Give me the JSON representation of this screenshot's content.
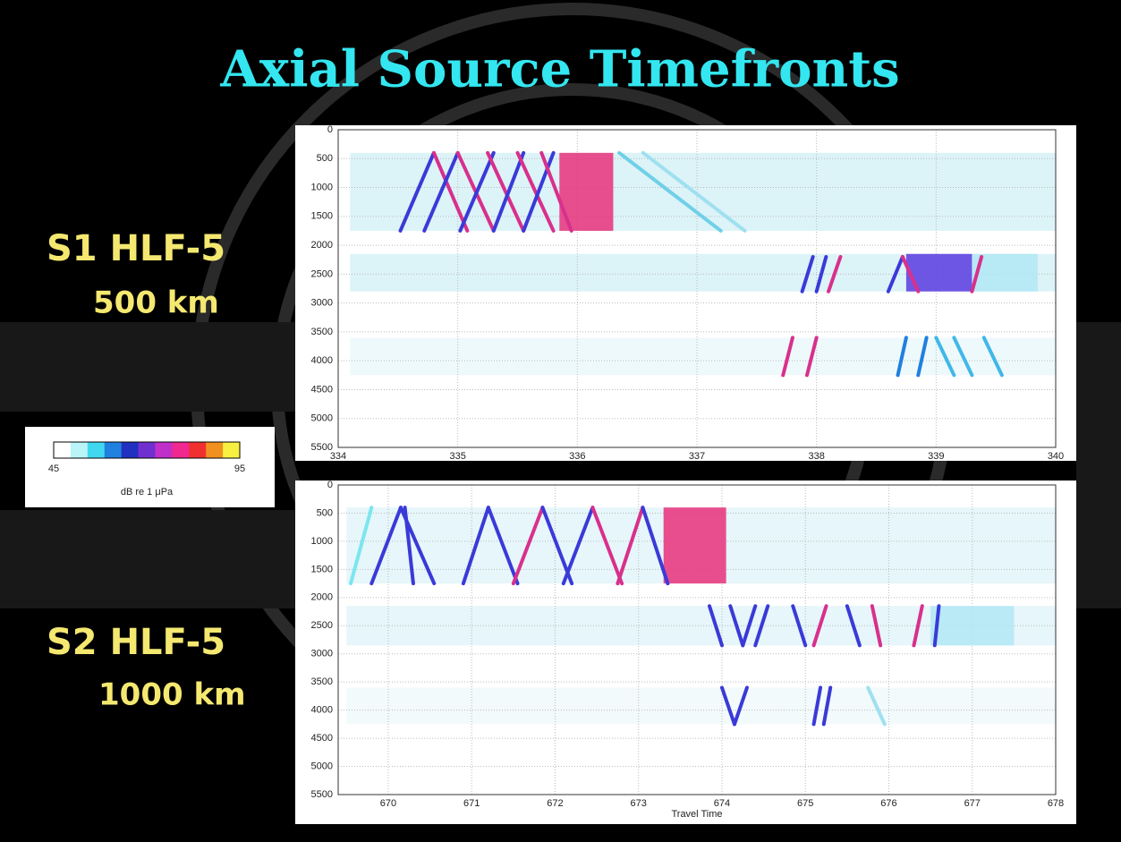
{
  "slide": {
    "title": "Axial Source Timefronts",
    "labels": [
      "S1 HLF-5",
      "500 km",
      "S2 HLF-5",
      "1000 km"
    ]
  },
  "colorbar": {
    "colors": [
      "#ffffff",
      "#b8f4f8",
      "#40d8f0",
      "#2080e0",
      "#2030c0",
      "#7030d0",
      "#c030c8",
      "#f02890",
      "#f03030",
      "#f09020",
      "#f8f040"
    ],
    "clim": [
      45,
      95
    ],
    "ticks": [
      45,
      95
    ],
    "label": "dB re 1 μPa"
  },
  "chart_data": [
    {
      "type": "timefront",
      "xlim": [
        334,
        340
      ],
      "xticks": [
        334,
        335,
        336,
        337,
        338,
        339,
        340
      ],
      "ylim": [
        5500,
        0
      ],
      "yticks": [
        0,
        500,
        1000,
        1500,
        2000,
        2500,
        3000,
        3500,
        4000,
        4500,
        5000,
        5500
      ],
      "grid": true,
      "bands": [
        {
          "color": "#dcf3f8",
          "x": [
            334.1,
            340
          ],
          "values": [
            400,
            1750
          ]
        },
        {
          "color": "#dcf3f8",
          "x": [
            334.1,
            340
          ],
          "values": [
            2150,
            2800
          ]
        },
        {
          "color": "#eef9fb",
          "x": [
            334.1,
            340
          ],
          "values": [
            3600,
            4250
          ]
        }
      ],
      "blocks": [
        {
          "color": "#e8307a",
          "x": [
            335.85,
            336.3
          ],
          "values": [
            400,
            1750
          ]
        },
        {
          "color": "#5a3ae0",
          "x": [
            338.75,
            339.3
          ],
          "values": [
            2150,
            2800
          ]
        },
        {
          "color": "#b0e8f4",
          "x": [
            339.3,
            339.85
          ],
          "values": [
            2150,
            2800
          ]
        }
      ],
      "series": [
        {
          "color": "#3a3ad8",
          "x": [
            334.52,
            334.8
          ],
          "values": [
            1750,
            400
          ]
        },
        {
          "color": "#d8308c",
          "x": [
            334.8,
            335.08
          ],
          "values": [
            400,
            1750
          ]
        },
        {
          "color": "#3a3ad8",
          "x": [
            334.72,
            335.0
          ],
          "values": [
            1750,
            400
          ]
        },
        {
          "color": "#d8308c",
          "x": [
            335.0,
            335.3
          ],
          "values": [
            400,
            1750
          ]
        },
        {
          "color": "#3a3ad8",
          "x": [
            335.02,
            335.3
          ],
          "values": [
            1750,
            400
          ]
        },
        {
          "color": "#d8308c",
          "x": [
            335.25,
            335.55
          ],
          "values": [
            400,
            1750
          ]
        },
        {
          "color": "#3a3ad8",
          "x": [
            335.3,
            335.55
          ],
          "values": [
            1750,
            400
          ]
        },
        {
          "color": "#d8308c",
          "x": [
            335.5,
            335.8
          ],
          "values": [
            400,
            1750
          ]
        },
        {
          "color": "#3a3ad8",
          "x": [
            335.55,
            335.8
          ],
          "values": [
            1750,
            400
          ]
        },
        {
          "color": "#d8308c",
          "x": [
            335.7,
            335.95
          ],
          "values": [
            400,
            1750
          ]
        },
        {
          "color": "#6fd0e8",
          "x": [
            336.35,
            337.2
          ],
          "values": [
            400,
            1750
          ]
        },
        {
          "color": "#9fe0ef",
          "x": [
            336.55,
            337.4
          ],
          "values": [
            400,
            1750
          ]
        },
        {
          "color": "#3a3ad8",
          "x": [
            337.88,
            337.97
          ],
          "values": [
            2800,
            2200
          ]
        },
        {
          "color": "#3a3ad8",
          "x": [
            338.0,
            338.08
          ],
          "values": [
            2800,
            2200
          ]
        },
        {
          "color": "#d8308c",
          "x": [
            338.1,
            338.2
          ],
          "values": [
            2800,
            2200
          ]
        },
        {
          "color": "#3a3ad8",
          "x": [
            338.6,
            338.72
          ],
          "values": [
            2800,
            2200
          ]
        },
        {
          "color": "#d8308c",
          "x": [
            338.72,
            338.85
          ],
          "values": [
            2200,
            2800
          ]
        },
        {
          "color": "#d8308c",
          "x": [
            339.3,
            339.38
          ],
          "values": [
            2800,
            2200
          ]
        },
        {
          "color": "#d8308c",
          "x": [
            337.72,
            337.8
          ],
          "values": [
            4250,
            3600
          ]
        },
        {
          "color": "#d8308c",
          "x": [
            337.92,
            338.0
          ],
          "values": [
            4250,
            3600
          ]
        },
        {
          "color": "#2080e0",
          "x": [
            338.68,
            338.75
          ],
          "values": [
            4250,
            3600
          ]
        },
        {
          "color": "#2080e0",
          "x": [
            338.85,
            338.92
          ],
          "values": [
            4250,
            3600
          ]
        },
        {
          "color": "#40b8e8",
          "x": [
            339.0,
            339.15
          ],
          "values": [
            3600,
            4250
          ]
        },
        {
          "color": "#40b8e8",
          "x": [
            339.15,
            339.3
          ],
          "values": [
            3600,
            4250
          ]
        },
        {
          "color": "#40b8e8",
          "x": [
            339.4,
            339.55
          ],
          "values": [
            3600,
            4250
          ]
        }
      ]
    },
    {
      "type": "timefront",
      "xlim": [
        669.4,
        678
      ],
      "xticks": [
        670,
        671,
        672,
        673,
        674,
        675,
        676,
        677,
        678
      ],
      "ylim": [
        5500,
        0
      ],
      "yticks": [
        0,
        500,
        1000,
        1500,
        2000,
        2500,
        3000,
        3500,
        4000,
        4500,
        5000,
        5500
      ],
      "grid": true,
      "xlabel": "Travel Time",
      "bands": [
        {
          "color": "#e6f6fa",
          "x": [
            669.5,
            678
          ],
          "values": [
            400,
            1750
          ]
        },
        {
          "color": "#e6f6fa",
          "x": [
            669.5,
            678
          ],
          "values": [
            2150,
            2850
          ]
        },
        {
          "color": "#f2fafc",
          "x": [
            669.5,
            678
          ],
          "values": [
            3600,
            4250
          ]
        }
      ],
      "blocks": [
        {
          "color": "#e8307a",
          "x": [
            673.3,
            674.05
          ],
          "values": [
            400,
            1750
          ]
        },
        {
          "color": "#b0e8f4",
          "x": [
            676.5,
            677.5
          ],
          "values": [
            2150,
            2850
          ]
        }
      ],
      "series": [
        {
          "color": "#7be6f0",
          "x": [
            669.55,
            669.8
          ],
          "values": [
            1750,
            400
          ]
        },
        {
          "color": "#3a3ad8",
          "x": [
            669.8,
            670.15
          ],
          "values": [
            1750,
            400
          ]
        },
        {
          "color": "#3a3ad8",
          "x": [
            670.15,
            670.55
          ],
          "values": [
            400,
            1750
          ]
        },
        {
          "color": "#3a3ad8",
          "x": [
            670.2,
            670.3
          ],
          "values": [
            400,
            1750
          ]
        },
        {
          "color": "#3a3ad8",
          "x": [
            670.9,
            671.2
          ],
          "values": [
            1750,
            400
          ]
        },
        {
          "color": "#3a3ad8",
          "x": [
            671.2,
            671.55
          ],
          "values": [
            400,
            1750
          ]
        },
        {
          "color": "#d8308c",
          "x": [
            671.5,
            671.85
          ],
          "values": [
            1750,
            400
          ]
        },
        {
          "color": "#3a3ad8",
          "x": [
            671.85,
            672.2
          ],
          "values": [
            400,
            1750
          ]
        },
        {
          "color": "#3a3ad8",
          "x": [
            672.1,
            672.45
          ],
          "values": [
            1750,
            400
          ]
        },
        {
          "color": "#d8308c",
          "x": [
            672.45,
            672.8
          ],
          "values": [
            400,
            1750
          ]
        },
        {
          "color": "#d8308c",
          "x": [
            672.75,
            673.05
          ],
          "values": [
            1750,
            400
          ]
        },
        {
          "color": "#3a3ad8",
          "x": [
            673.05,
            673.35
          ],
          "values": [
            400,
            1750
          ]
        },
        {
          "color": "#3a3ad8",
          "x": [
            673.85,
            674.0
          ],
          "values": [
            2150,
            2850
          ]
        },
        {
          "color": "#3a3ad8",
          "x": [
            674.1,
            674.25
          ],
          "values": [
            2150,
            2850
          ]
        },
        {
          "color": "#3a3ad8",
          "x": [
            674.25,
            674.4
          ],
          "values": [
            2850,
            2150
          ]
        },
        {
          "color": "#3a3ad8",
          "x": [
            674.4,
            674.55
          ],
          "values": [
            2850,
            2150
          ]
        },
        {
          "color": "#3a3ad8",
          "x": [
            674.85,
            675.0
          ],
          "values": [
            2150,
            2850
          ]
        },
        {
          "color": "#d8308c",
          "x": [
            675.1,
            675.25
          ],
          "values": [
            2850,
            2150
          ]
        },
        {
          "color": "#3a3ad8",
          "x": [
            675.5,
            675.65
          ],
          "values": [
            2150,
            2850
          ]
        },
        {
          "color": "#d8308c",
          "x": [
            675.8,
            675.9
          ],
          "values": [
            2150,
            2850
          ]
        },
        {
          "color": "#d8308c",
          "x": [
            676.3,
            676.4
          ],
          "values": [
            2850,
            2150
          ]
        },
        {
          "color": "#3a3ad8",
          "x": [
            676.55,
            676.6
          ],
          "values": [
            2850,
            2150
          ]
        },
        {
          "color": "#3a3ad8",
          "x": [
            674.0,
            674.15
          ],
          "values": [
            3600,
            4250
          ]
        },
        {
          "color": "#3a3ad8",
          "x": [
            674.15,
            674.3
          ],
          "values": [
            4250,
            3600
          ]
        },
        {
          "color": "#3a3ad8",
          "x": [
            675.1,
            675.18
          ],
          "values": [
            4250,
            3600
          ]
        },
        {
          "color": "#3a3ad8",
          "x": [
            675.22,
            675.3
          ],
          "values": [
            4250,
            3600
          ]
        },
        {
          "color": "#9fe0ef",
          "x": [
            675.75,
            675.95
          ],
          "values": [
            3600,
            4250
          ]
        }
      ]
    }
  ]
}
